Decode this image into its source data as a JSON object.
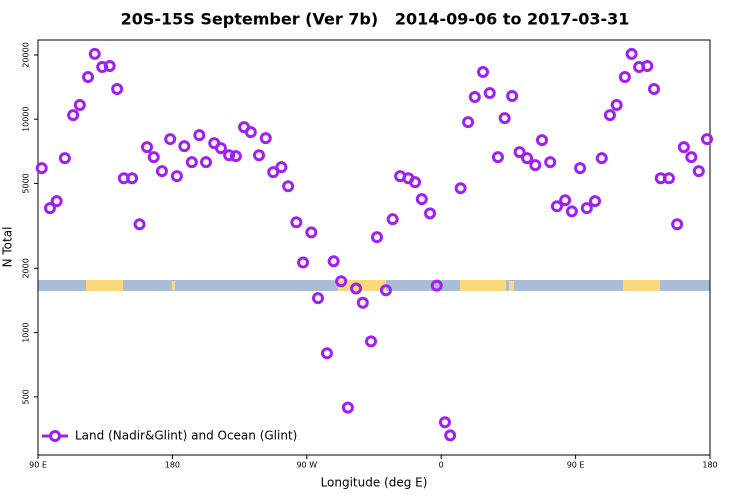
{
  "chart_data": {
    "type": "scatter",
    "title": "20S-15S September (Ver 7b)   2014-09-06 to 2017-03-31",
    "x_label": "Longitude (deg E)",
    "y_label": "N Total",
    "xlim": [
      90,
      540
    ],
    "xticks": [
      {
        "value": 90,
        "label": "90 E"
      },
      180,
      {
        "value": 270,
        "label": "90 W"
      },
      {
        "value": 360,
        "label": "0"
      },
      {
        "value": 450,
        "label": "90 E"
      },
      {
        "value": 540,
        "label": "180"
      }
    ],
    "ylim": [
      267,
      23500
    ],
    "yticks": [
      500,
      1000,
      2000,
      5000,
      10000,
      20000
    ],
    "log_y": true,
    "legend": "bottom-left",
    "series": [
      {
        "name": "Land (Nadir&Glint) and Ocean (Glint)",
        "color": "#a020f0",
        "x": [
          92.5,
          98,
          102.5,
          108,
          113.5,
          118,
          123.5,
          128,
          133,
          138,
          143,
          147.5,
          153,
          158,
          163,
          167.5,
          173,
          178.5,
          183,
          188,
          193,
          198,
          202.5,
          208,
          212.5,
          218,
          222.5,
          228,
          232.5,
          238,
          242.5,
          247.5,
          253,
          257.5,
          263,
          267.5,
          273,
          277.5,
          283.5,
          288,
          293,
          297.5,
          303,
          307.5,
          313,
          317,
          323,
          327.5,
          332.5,
          338,
          342.5,
          347,
          352.5,
          357,
          362.5,
          366,
          373,
          378,
          382.5,
          388,
          392.5,
          398,
          402.5,
          407.5,
          412.5,
          417.5,
          423,
          427.5,
          433,
          437.5,
          443,
          447.5,
          453,
          457.5,
          463,
          467.5,
          473,
          477.5,
          483,
          487.5,
          492.5,
          498,
          502.5,
          507,
          512.5,
          518,
          522.5,
          527.5,
          532.5,
          538
        ],
        "values": [
          5900,
          3830,
          4130,
          6570,
          10450,
          11650,
          15760,
          20220,
          17570,
          17760,
          13850,
          5290,
          5290,
          3220,
          7400,
          6640,
          5710,
          8070,
          5410,
          7480,
          6290,
          8420,
          6290,
          7720,
          7320,
          6780,
          6710,
          9180,
          8700,
          6780,
          8150,
          5650,
          5960,
          4850,
          3290,
          2130,
          2950,
          1450,
          800,
          2160,
          1740,
          445,
          1610,
          1380,
          910,
          2800,
          1580,
          3400,
          5410,
          5290,
          5070,
          4220,
          3620,
          1660,
          380,
          330,
          4750,
          9690,
          12700,
          16640,
          13270,
          6640,
          10120,
          12840,
          7010,
          6570,
          6090,
          7980,
          6290,
          3910,
          4170,
          3700,
          5900,
          3830,
          4130,
          6570,
          10450,
          11650,
          15760,
          20220,
          17570,
          17760,
          13850,
          5290,
          5290,
          3220,
          7400,
          6640,
          5710,
          8070
        ]
      }
    ]
  }
}
